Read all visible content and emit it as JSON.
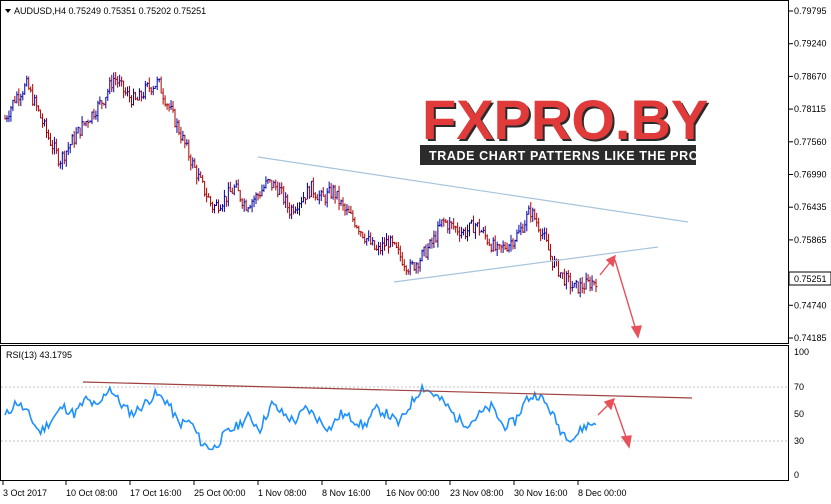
{
  "symbol_label": "AUDUSD,H4  0.75249 0.75351 0.75202 0.75251",
  "rsi_label": "RSI(13) 43.1795",
  "current_price": "0.75251",
  "logo": {
    "text": "FXPRO.BY",
    "tagline": "TRADE CHART PATTERNS LIKE THE PROS"
  },
  "colors": {
    "bull_candle": "#0000aa",
    "bear_candle": "#aa0000",
    "rsi_line": "#1e90ff",
    "trend_line": "#a8c4dc",
    "rsi_trend_line": "#a04040",
    "forecast_arrow": "#e8505a",
    "price_tag_bg": "#ffffff"
  },
  "chart_data": [
    {
      "type": "candlestick",
      "title": "AUDUSD,H4",
      "y_ticks": [
        "0.79795",
        "0.79240",
        "0.78670",
        "0.78115",
        "0.77560",
        "0.76990",
        "0.76435",
        "0.75865",
        "0.75251",
        "0.74740",
        "0.74185"
      ],
      "ylim": [
        0.7415,
        0.8005
      ],
      "x_ticks": [
        "3 Oct 2017",
        "10 Oct 08:00",
        "17 Oct 16:00",
        "25 Oct 00:00",
        "1 Nov 08:00",
        "8 Nov 16:00",
        "16 Nov 00:00",
        "23 Nov 08:00",
        "30 Nov 16:00",
        "8 Dec 00:00"
      ],
      "ohlc_label": {
        "open": 0.75249,
        "high": 0.75351,
        "low": 0.75202,
        "close": 0.75251
      },
      "close_path": [
        0.7815,
        0.7855,
        0.7875,
        0.783,
        0.778,
        0.774,
        0.777,
        0.78,
        0.7825,
        0.785,
        0.789,
        0.786,
        0.7845,
        0.787,
        0.788,
        0.7835,
        0.779,
        0.774,
        0.7695,
        0.7655,
        0.767,
        0.769,
        0.766,
        0.7675,
        0.77,
        0.769,
        0.765,
        0.767,
        0.769,
        0.767,
        0.7685,
        0.765,
        0.763,
        0.76,
        0.7575,
        0.7595,
        0.757,
        0.7545,
        0.7565,
        0.759,
        0.763,
        0.762,
        0.761,
        0.7625,
        0.76,
        0.7575,
        0.759,
        0.761,
        0.765,
        0.7615,
        0.756,
        0.753,
        0.751,
        0.7515,
        0.7525
      ],
      "trendlines": [
        {
          "name": "upper",
          "from": [
            "1 Nov 08:00",
            0.7735
          ],
          "to": "descending"
        },
        {
          "name": "lower",
          "from": [
            "16 Nov 00:00",
            0.755
          ],
          "to": "ascending"
        }
      ],
      "forecast": "rise to trendline then decline"
    },
    {
      "type": "line",
      "title": "RSI(13)",
      "y_ticks": [
        "100",
        "70",
        "50",
        "30",
        "0"
      ],
      "ylim": [
        0,
        100
      ],
      "last_value": 43.1795,
      "rsi_path": [
        48,
        60,
        50,
        35,
        45,
        56,
        50,
        62,
        55,
        72,
        58,
        50,
        58,
        66,
        60,
        42,
        44,
        26,
        22,
        34,
        40,
        48,
        38,
        58,
        50,
        44,
        55,
        46,
        38,
        50,
        46,
        40,
        54,
        50,
        42,
        58,
        72,
        66,
        58,
        46,
        42,
        50,
        56,
        40,
        44,
        62,
        66,
        54,
        36,
        30,
        40,
        43
      ],
      "trendline": "descending resistance across highs near 70"
    }
  ]
}
